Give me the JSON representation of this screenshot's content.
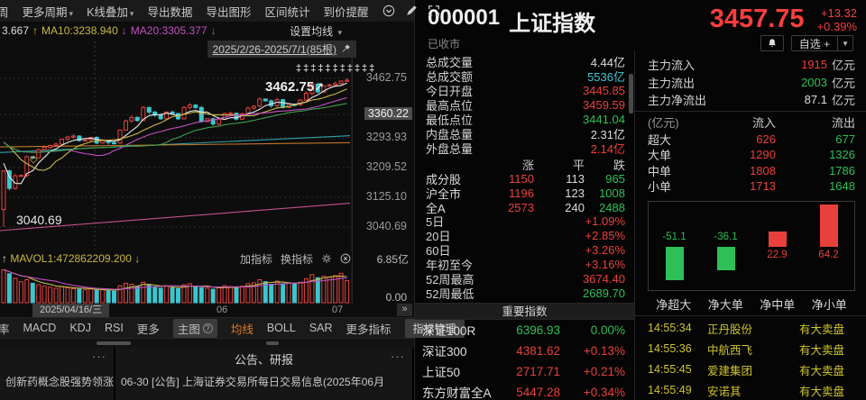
{
  "toolbar": {
    "items": [
      {
        "label": "周",
        "caret": false
      },
      {
        "label": "更多周期",
        "caret": true
      },
      {
        "label": "K线叠加",
        "caret": true
      },
      {
        "label": "导出数据",
        "caret": false
      },
      {
        "label": "导出图形",
        "caret": false
      },
      {
        "label": "区间统计",
        "caret": false
      },
      {
        "label": "到价提醒",
        "caret": false
      }
    ]
  },
  "ma_row": {
    "tokens": [
      {
        "t": "3.667",
        "c": "w"
      },
      {
        "t": "↑",
        "c": "y"
      },
      {
        "t": "MA10:3238.940",
        "c": "y"
      },
      {
        "t": "↓",
        "c": "m"
      },
      {
        "t": "MA20:3305.377",
        "c": "m"
      },
      {
        "t": "↓",
        "c": "m"
      }
    ],
    "settings": "设置均线",
    "caret": "▾"
  },
  "chart": {
    "range_label": "2025/2/26-2025/7/1(85根)",
    "marks_row": "‡‡‡‡‡‡‡‡‡‡‡",
    "peak_label": "3462.75",
    "peak_arrow": "↗",
    "low_label": "3040.69",
    "diamond": "◇"
  },
  "chart_data": {
    "type": "candlestick",
    "symbol": "000001 上证指数",
    "period_label": "2025/2/26-2025/7/1(85根)",
    "y_ticks": [
      3462.75,
      3360.22,
      3293.93,
      3209.52,
      3125.1,
      3040.69
    ],
    "y_highlight": 3360.22,
    "x_tick_labels": [
      "2025/04/16/三",
      "06",
      "07"
    ],
    "open0": 3090,
    "closes": [
      3200,
      3150,
      3186,
      3187,
      3240,
      3237,
      3260,
      3267,
      3272,
      3276,
      3290,
      3296,
      3299,
      3286,
      3288,
      3295,
      3279,
      3286,
      3280,
      3279,
      3316,
      3342,
      3352,
      3343,
      3380,
      3367,
      3358,
      3348,
      3367,
      3363,
      3348,
      3380,
      3387,
      3380,
      3340,
      3348,
      3333,
      3347,
      3363,
      3364,
      3347,
      3362,
      3378,
      3384,
      3404,
      3399,
      3385,
      3402,
      3380,
      3389,
      3388,
      3401,
      3420,
      3446,
      3424,
      3442,
      3444,
      3448,
      3455,
      3457.75
    ],
    "low_overrides": {
      "0": 3040.69
    },
    "high_overrides": {
      "59": 3462.75
    },
    "ma_warmup_closes": [
      3368,
      3372,
      3350,
      3336,
      3342,
      3280,
      3190,
      3096
    ],
    "ma_values_shown": {
      "ma10": "3238.940",
      "ma20": "3305.377"
    },
    "volumes": [
      6.6,
      5.8,
      4.9,
      4.2,
      4.6,
      3.9,
      3.6,
      3.3,
      3.1,
      2.9,
      3.2,
      3.0,
      2.8,
      2.7,
      2.6,
      2.8,
      2.5,
      2.6,
      2.4,
      2.3,
      3.4,
      3.9,
      3.7,
      3.2,
      4.1,
      3.5,
      3.1,
      2.9,
      3.3,
      3.0,
      2.8,
      3.6,
      3.8,
      3.3,
      3.0,
      2.9,
      2.7,
      3.1,
      3.4,
      3.2,
      2.9,
      3.3,
      3.8,
      4.0,
      4.6,
      4.2,
      3.7,
      4.3,
      3.8,
      3.9,
      3.7,
      4.1,
      4.8,
      5.6,
      5.0,
      5.3,
      5.1,
      5.4,
      5.9,
      4.44
    ],
    "volume_axis": {
      "max": "6.85亿",
      "min": "0.00"
    },
    "trend_lines": [
      {
        "name": "ma-cyan",
        "color": "#35b0b8",
        "y0": 3252,
        "y1": 3300
      },
      {
        "name": "ma-orange",
        "color": "#d2802a",
        "y0": 3268,
        "y1": 3280
      },
      {
        "name": "ma-pink",
        "color": "#d85898",
        "y0": 3030,
        "y1": 3108
      }
    ]
  },
  "vol": {
    "arrow_up": "↑",
    "label": "MAVOL1:472862209.200",
    "arrow_down": "↓",
    "add_indicator": "加指标",
    "switch_indicator": "换指标",
    "max_label": "6.85亿",
    "min_label": "0.00",
    "x_tag": "2025/04/16/三",
    "x_mid": "06",
    "x_right": "07",
    "more": "»"
  },
  "indicator_bar": {
    "items": [
      "率",
      "MACD",
      "KDJ",
      "RSI",
      "更多",
      "主图",
      "均线",
      "BOLL",
      "SAR",
      "更多指标"
    ],
    "help": "?",
    "manage": "指标管理"
  },
  "bottom": {
    "left_menu": "···",
    "left_text": "创新药概念股强势领涨",
    "right_title": "公告、研报",
    "right_menu": "···",
    "right_text": "06-30 [公告] 上海证券交易所每日交易信息(2025年06月"
  },
  "quote": {
    "code": "000001",
    "name": "上证指数",
    "price": "3457.75",
    "change": "+13.32",
    "pct": "+0.39%",
    "status": "已收市",
    "watch": "自选 +",
    "caret": "▼"
  },
  "stats": {
    "rows": [
      {
        "label": "总成交量",
        "value": "4.44亿",
        "c": "w"
      },
      {
        "label": "总成交额",
        "value": "5536亿",
        "c": "cy"
      },
      {
        "label": "今日开盘",
        "value": "3445.85",
        "c": "r"
      },
      {
        "label": "最高点位",
        "value": "3459.59",
        "c": "r"
      },
      {
        "label": "最低点位",
        "value": "3441.04",
        "c": "g"
      },
      {
        "label": "内盘总量",
        "value": "2.31亿",
        "c": "w"
      },
      {
        "label": "外盘总量",
        "value": "2.14亿",
        "c": "r"
      }
    ]
  },
  "updown": {
    "headers": [
      "涨",
      "平",
      "跌"
    ],
    "rows": [
      {
        "label": "成分股",
        "up": "1150",
        "flat": "113",
        "down": "965"
      },
      {
        "label": "沪全市",
        "up": "1196",
        "flat": "123",
        "down": "1008"
      },
      {
        "label": "全A",
        "up": "2573",
        "flat": "240",
        "down": "2488"
      }
    ]
  },
  "perf": {
    "rows": [
      {
        "label": "5日",
        "value": "+1.09%",
        "c": "r"
      },
      {
        "label": "20日",
        "value": "+2.85%",
        "c": "r"
      },
      {
        "label": "60日",
        "value": "+3.26%",
        "c": "r"
      },
      {
        "label": "年初至今",
        "value": "+3.16%",
        "c": "r"
      },
      {
        "label": "52周最高",
        "value": "3674.40",
        "c": "r"
      },
      {
        "label": "52周最低",
        "value": "2689.70",
        "c": "g"
      }
    ]
  },
  "indices": {
    "title": "重要指数",
    "rows": [
      {
        "name": "深证100R",
        "value": "6396.93",
        "pct": "0.00%",
        "c": "g"
      },
      {
        "name": "深证300",
        "value": "4381.62",
        "pct": "+0.13%",
        "c": "r"
      },
      {
        "name": "上证50",
        "value": "2717.71",
        "pct": "+0.21%",
        "c": "r"
      },
      {
        "name": "东方财富全A",
        "value": "5447.28",
        "pct": "+0.34%",
        "c": "r"
      }
    ]
  },
  "flow": {
    "rows": [
      {
        "label": "主力流入",
        "value": "1915",
        "unit": "亿元",
        "c": "r"
      },
      {
        "label": "主力流出",
        "value": "2003",
        "unit": "亿元",
        "c": "g"
      },
      {
        "label": "主力净流出",
        "value": "87.1",
        "unit": "亿元",
        "c": "w"
      }
    ],
    "table": {
      "headers": [
        "(亿元)",
        "流入",
        "流出"
      ],
      "rows": [
        {
          "label": "超大",
          "in": "626",
          "out": "677"
        },
        {
          "label": "大单",
          "in": "1290",
          "out": "1326"
        },
        {
          "label": "中单",
          "in": "1808",
          "out": "1786"
        },
        {
          "label": "小单",
          "in": "1713",
          "out": "1648"
        }
      ]
    }
  },
  "net_bars": {
    "type": "bar",
    "categories": [
      "净超大",
      "净大单",
      "净中单",
      "净小单"
    ],
    "values": [
      -51.1,
      -36.1,
      22.9,
      64.2
    ],
    "unit": "亿元"
  },
  "alerts": {
    "rows": [
      {
        "time": "14:55:34",
        "stock": "正丹股份",
        "event": "有大卖盘"
      },
      {
        "time": "14:55:36",
        "stock": "中航西飞",
        "event": "有大卖盘"
      },
      {
        "time": "14:55:45",
        "stock": "爱建集团",
        "event": "有大卖盘"
      },
      {
        "time": "14:55:49",
        "stock": "安诺其",
        "event": "有大卖盘"
      }
    ]
  },
  "colors": {
    "red": "#e8413c",
    "green": "#2fbf57",
    "cyan": "#3bc6ce",
    "yellow": "#c9b945",
    "magenta": "#c24fc2",
    "orange": "#e07b28",
    "price_red": "#fa3e3e",
    "alert_yellow": "#cfc32e"
  }
}
